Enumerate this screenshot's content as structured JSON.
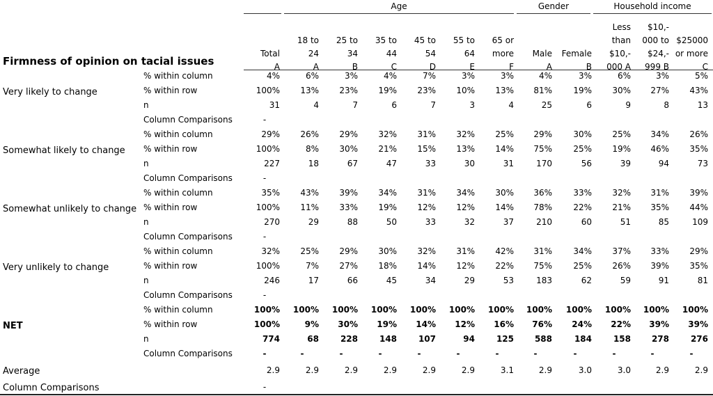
{
  "title": "Firmness of opinion on tacial issues",
  "groups": [
    "Age",
    "Gender",
    "Household income"
  ],
  "headers": [
    [
      "Total",
      "A"
    ],
    [
      "18 to",
      "24",
      "A"
    ],
    [
      "25 to",
      "34",
      "B"
    ],
    [
      "35 to",
      "44",
      "C"
    ],
    [
      "45 to",
      "54",
      "D"
    ],
    [
      "55 to",
      "64",
      "E"
    ],
    [
      "65 or",
      "more",
      "F"
    ],
    [
      "Male",
      "A"
    ],
    [
      "Female",
      "B"
    ],
    [
      "Less",
      "than",
      "$10,-",
      "000 A"
    ],
    [
      "$10,-",
      "000 to",
      "$24,-",
      "999 B"
    ],
    [
      "$25000",
      "or more",
      "C"
    ]
  ],
  "sublabels": [
    "% within column",
    "% within row",
    "n",
    "Column Comparisons"
  ],
  "sections": [
    {
      "label": "Very likely to change",
      "bold": false,
      "rows": [
        [
          "4%",
          "6%",
          "3%",
          "4%",
          "7%",
          "3%",
          "3%",
          "4%",
          "3%",
          "6%",
          "3%",
          "5%"
        ],
        [
          "100%",
          "13%",
          "23%",
          "19%",
          "23%",
          "10%",
          "13%",
          "81%",
          "19%",
          "30%",
          "27%",
          "43%"
        ],
        [
          "31",
          "4",
          "7",
          "6",
          "7",
          "3",
          "4",
          "25",
          "6",
          "9",
          "8",
          "13"
        ],
        [
          "-",
          "",
          "",
          "",
          "",
          "",
          "",
          "",
          "",
          "",
          "",
          ""
        ]
      ]
    },
    {
      "label": "Somewhat likely to change",
      "bold": false,
      "rows": [
        [
          "29%",
          "26%",
          "29%",
          "32%",
          "31%",
          "32%",
          "25%",
          "29%",
          "30%",
          "25%",
          "34%",
          "26%"
        ],
        [
          "100%",
          "8%",
          "30%",
          "21%",
          "15%",
          "13%",
          "14%",
          "75%",
          "25%",
          "19%",
          "46%",
          "35%"
        ],
        [
          "227",
          "18",
          "67",
          "47",
          "33",
          "30",
          "31",
          "170",
          "56",
          "39",
          "94",
          "73"
        ],
        [
          "-",
          "",
          "",
          "",
          "",
          "",
          "",
          "",
          "",
          "",
          "",
          ""
        ]
      ]
    },
    {
      "label": "Somewhat unlikely to change",
      "bold": false,
      "rows": [
        [
          "35%",
          "43%",
          "39%",
          "34%",
          "31%",
          "34%",
          "30%",
          "36%",
          "33%",
          "32%",
          "31%",
          "39%"
        ],
        [
          "100%",
          "11%",
          "33%",
          "19%",
          "12%",
          "12%",
          "14%",
          "78%",
          "22%",
          "21%",
          "35%",
          "44%"
        ],
        [
          "270",
          "29",
          "88",
          "50",
          "33",
          "32",
          "37",
          "210",
          "60",
          "51",
          "85",
          "109"
        ],
        [
          "-",
          "",
          "",
          "",
          "",
          "",
          "",
          "",
          "",
          "",
          "",
          ""
        ]
      ]
    },
    {
      "label": "Very unlikely to change",
      "bold": false,
      "rows": [
        [
          "32%",
          "25%",
          "29%",
          "30%",
          "32%",
          "31%",
          "42%",
          "31%",
          "34%",
          "37%",
          "33%",
          "29%"
        ],
        [
          "100%",
          "7%",
          "27%",
          "18%",
          "14%",
          "12%",
          "22%",
          "75%",
          "25%",
          "26%",
          "39%",
          "35%"
        ],
        [
          "246",
          "17",
          "66",
          "45",
          "34",
          "29",
          "53",
          "183",
          "62",
          "59",
          "91",
          "81"
        ],
        [
          "-",
          "",
          "",
          "",
          "",
          "",
          "",
          "",
          "",
          "",
          "",
          ""
        ]
      ]
    },
    {
      "label": "NET",
      "bold": true,
      "rows": [
        [
          "100%",
          "100%",
          "100%",
          "100%",
          "100%",
          "100%",
          "100%",
          "100%",
          "100%",
          "100%",
          "100%",
          "100%"
        ],
        [
          "100%",
          "9%",
          "30%",
          "19%",
          "14%",
          "12%",
          "16%",
          "76%",
          "24%",
          "22%",
          "39%",
          "39%"
        ],
        [
          "774",
          "68",
          "228",
          "148",
          "107",
          "94",
          "125",
          "588",
          "184",
          "158",
          "278",
          "276"
        ],
        [
          "-",
          "-",
          "-",
          "-",
          "-",
          "-",
          "-",
          "-",
          "-",
          "-",
          "-",
          "-"
        ]
      ]
    }
  ],
  "average": {
    "label": "Average",
    "values": [
      "2.9",
      "2.9",
      "2.9",
      "2.9",
      "2.9",
      "2.9",
      "3.1",
      "2.9",
      "3.0",
      "3.0",
      "2.9",
      "2.9"
    ]
  },
  "footer": {
    "label": "Column Comparisons",
    "value": "-"
  }
}
